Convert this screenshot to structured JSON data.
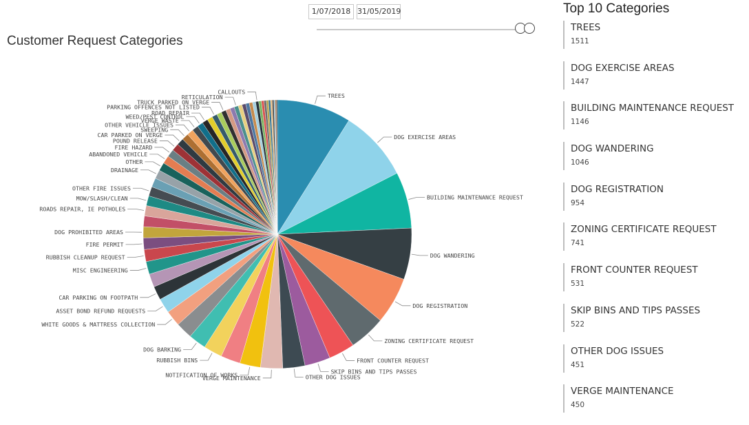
{
  "title": "Customer Request Categories",
  "filter": {
    "start_date": "1/07/2018",
    "end_date": "31/05/2019"
  },
  "top10": {
    "title": "Top 10 Categories",
    "items": [
      {
        "name": "TREES",
        "value": "1511"
      },
      {
        "name": "DOG EXERCISE AREAS",
        "value": "1447"
      },
      {
        "name": "BUILDING MAINTENANCE REQUEST",
        "value": "1146"
      },
      {
        "name": "DOG WANDERING",
        "value": "1046"
      },
      {
        "name": "DOG REGISTRATION",
        "value": "954"
      },
      {
        "name": "ZONING CERTIFICATE REQUEST",
        "value": "741"
      },
      {
        "name": "FRONT COUNTER REQUEST",
        "value": "531"
      },
      {
        "name": "SKIP BINS AND TIPS PASSES",
        "value": "522"
      },
      {
        "name": "OTHER DOG ISSUES",
        "value": "451"
      },
      {
        "name": "VERGE MAINTENANCE",
        "value": "450"
      }
    ]
  },
  "chart_data": {
    "type": "pie",
    "title": "Customer Request Categories",
    "slices": [
      {
        "label": "TREES",
        "value": 1511,
        "color": "#2a8db0"
      },
      {
        "label": "DOG EXERCISE AREAS",
        "value": 1447,
        "color": "#8fd3ea"
      },
      {
        "label": "BUILDING MAINTENANCE REQUEST",
        "value": 1146,
        "color": "#10b5a2"
      },
      {
        "label": "DOG WANDERING",
        "value": 1046,
        "color": "#353f44"
      },
      {
        "label": "DOG REGISTRATION",
        "value": 954,
        "color": "#f5895d"
      },
      {
        "label": "ZONING CERTIFICATE REQUEST",
        "value": 741,
        "color": "#5f6a6e"
      },
      {
        "label": "FRONT COUNTER REQUEST",
        "value": 531,
        "color": "#ee5356"
      },
      {
        "label": "SKIP BINS AND TIPS PASSES",
        "value": 522,
        "color": "#9c5b9e"
      },
      {
        "label": "OTHER DOG ISSUES",
        "value": 451,
        "color": "#3d4a52"
      },
      {
        "label": "VERGE MAINTENANCE",
        "value": 450,
        "color": "#e0b8b1"
      },
      {
        "label": "NOTIFICATION OF WORKS",
        "value": 420,
        "color": "#f1c10f"
      },
      {
        "label": "",
        "value": 400,
        "color": "#f07f83"
      },
      {
        "label": "RUBBISH BINS",
        "value": 380,
        "color": "#f2d25c"
      },
      {
        "label": "DOG BARKING",
        "value": 360,
        "color": "#40beb1"
      },
      {
        "label": "",
        "value": 340,
        "color": "#8a8d8f"
      },
      {
        "label": "WHITE GOODS & MATTRESS COLLECTION",
        "value": 320,
        "color": "#f2a07f"
      },
      {
        "label": "ASSET BOND REFUND REQUESTS",
        "value": 300,
        "color": "#8fd3ea"
      },
      {
        "label": "CAR PARKING ON FOOTPATH",
        "value": 280,
        "color": "#2d3438"
      },
      {
        "label": "",
        "value": 270,
        "color": "#b595b5"
      },
      {
        "label": "MISC ENGINEERING",
        "value": 260,
        "color": "#21958a"
      },
      {
        "label": "RUBBISH CLEANUP REQUEST",
        "value": 245,
        "color": "#c9474d"
      },
      {
        "label": "FIRE PERMIT",
        "value": 235,
        "color": "#7b4e80"
      },
      {
        "label": "DOG PROHIBITED AREAS",
        "value": 225,
        "color": "#c2a53c"
      },
      {
        "label": "",
        "value": 218,
        "color": "#c24f67"
      },
      {
        "label": "ROADS REPAIR, IE POTHOLES",
        "value": 210,
        "color": "#d9a59b"
      },
      {
        "label": "MOW/SLASH/CLEAN",
        "value": 200,
        "color": "#1e8a84"
      },
      {
        "label": "OTHER FIRE ISSUES",
        "value": 192,
        "color": "#454c52"
      },
      {
        "label": "",
        "value": 185,
        "color": "#6aa0b4"
      },
      {
        "label": "DRAINAGE",
        "value": 178,
        "color": "#97a2a8"
      },
      {
        "label": "OTHER",
        "value": 170,
        "color": "#19625c"
      },
      {
        "label": "ABANDONED VEHICLE",
        "value": 163,
        "color": "#e47d52"
      },
      {
        "label": "FIRE HAZARD",
        "value": 156,
        "color": "#6a7f84"
      },
      {
        "label": "POUND RELEASE",
        "value": 150,
        "color": "#9e3236"
      },
      {
        "label": "CAR PARKED ON VERGE",
        "value": 144,
        "color": "#2f3a41"
      },
      {
        "label": "SWEEPING",
        "value": 138,
        "color": "#ad6f32"
      },
      {
        "label": "OTHER VEHICLE ISSUES",
        "value": 132,
        "color": "#f0a35e"
      },
      {
        "label": "VERGE WASTE",
        "value": 126,
        "color": "#41494e"
      },
      {
        "label": "WEED/PEST CONTROL",
        "value": 121,
        "color": "#116f8a"
      },
      {
        "label": "ROAD REPAIR",
        "value": 116,
        "color": "#262626"
      },
      {
        "label": "",
        "value": 111,
        "color": "#e2ce2b"
      },
      {
        "label": "PARKING OFFENCES NOT LISTED",
        "value": 106,
        "color": "#355b6b"
      },
      {
        "label": "",
        "value": 101,
        "color": "#a9cd5c"
      },
      {
        "label": "TRUCK PARKED ON VERGE",
        "value": 96,
        "color": "#303030"
      },
      {
        "label": "",
        "value": 92,
        "color": "#d59a84"
      },
      {
        "label": "",
        "value": 88,
        "color": "#8d7aae"
      },
      {
        "label": "RETICULATION",
        "value": 84,
        "color": "#4b8f8d"
      },
      {
        "label": "",
        "value": 80,
        "color": "#e8d081"
      },
      {
        "label": "",
        "value": 76,
        "color": "#5a4b6b"
      },
      {
        "label": "",
        "value": 72,
        "color": "#4d77a0"
      },
      {
        "label": "",
        "value": 68,
        "color": "#c68b4d"
      },
      {
        "label": "",
        "value": 64,
        "color": "#a5d0e0"
      },
      {
        "label": "CALLOUTS",
        "value": 60,
        "color": "#263238"
      },
      {
        "label": "",
        "value": 56,
        "color": "#7bb662"
      },
      {
        "label": "",
        "value": 52,
        "color": "#d9534f"
      },
      {
        "label": "",
        "value": 48,
        "color": "#6d6d6d"
      },
      {
        "label": "",
        "value": 44,
        "color": "#b6a34d"
      },
      {
        "label": "",
        "value": 40,
        "color": "#2e6f8e"
      },
      {
        "label": "",
        "value": 36,
        "color": "#e6b87a"
      },
      {
        "label": "",
        "value": 32,
        "color": "#3c3c3c"
      },
      {
        "label": "",
        "value": 28,
        "color": "#8fb7c9"
      },
      {
        "label": "",
        "value": 24,
        "color": "#aa6e3d"
      },
      {
        "label": "",
        "value": 20,
        "color": "#1f2a30"
      }
    ]
  }
}
